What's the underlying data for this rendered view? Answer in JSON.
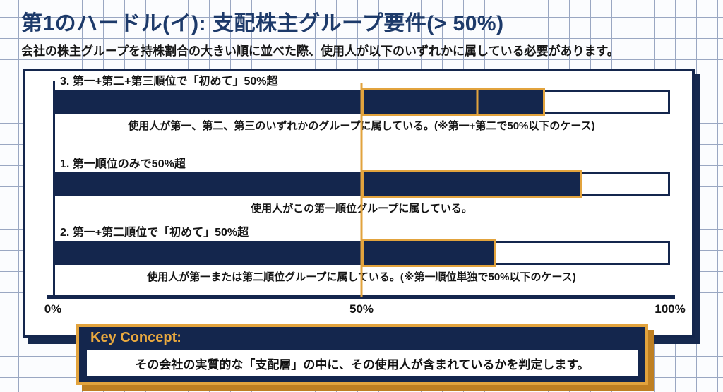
{
  "page": {
    "title": "第1のハードル(イ): 支配株主グループ要件(> 50%)",
    "subtitle": "会社の株主グループを持株割合の大きい順に並べた際、使用人が以下のいずれかに属している必要があります。"
  },
  "colors": {
    "navy": "#14264d",
    "orange": "#e2a33d",
    "title_navy": "#1d3a6a",
    "grid_line": "#9aa7c2"
  },
  "chart_data": {
    "type": "bar",
    "orientation": "horizontal",
    "axis": {
      "ticks": [
        "0%",
        "50%",
        "100%"
      ],
      "range_pct": [
        0,
        100
      ],
      "threshold_pct": 50,
      "threshold_line_color": "#e2a33d"
    },
    "bars": [
      {
        "label": "1. 第一順位のみで50%超",
        "filled_to_pct": 86,
        "highlight_from_pct": 50,
        "highlight_to_pct": 86,
        "highlight_divider_pcts": [],
        "caption": "使用人がこの第一順位グループに属している。"
      },
      {
        "label": "2. 第一+第二順位で「初めて」50%超",
        "filled_to_pct": 72,
        "highlight_from_pct": 50,
        "highlight_to_pct": 72,
        "highlight_divider_pcts": [],
        "caption": "使用人が第一または第二順位グループに属している。(※第一順位単独で50%以下のケース)"
      },
      {
        "label": "3. 第一+第二+第三順位で「初めて」50%超",
        "filled_to_pct": 80,
        "highlight_from_pct": 50,
        "highlight_to_pct": 80,
        "highlight_divider_pcts": [
          69
        ],
        "caption": "使用人が第一、第二、第三のいずれかのグループに属している。(※第一+第二で50%以下のケース)"
      }
    ]
  },
  "key_concept": {
    "header": "Key Concept:",
    "body": "その会社の実質的な「支配層」の中に、その使用人が含まれているかを判定します。"
  }
}
